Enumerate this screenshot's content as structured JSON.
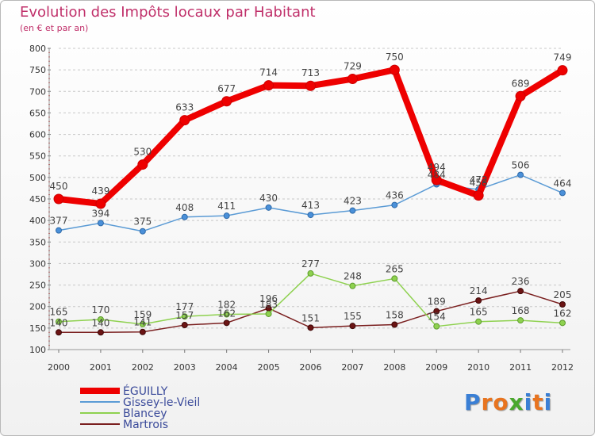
{
  "header": {
    "title": "Evolution des Impôts locaux par Habitant",
    "subtitle": "(en € et par an)"
  },
  "logo": {
    "text": "Proxiti",
    "letter_colors": [
      "#3a7fd5",
      "#e8741f",
      "#e8741f",
      "#4aa82e",
      "#3a7fd5",
      "#e8741f",
      "#3a7fd5"
    ]
  },
  "chart_data": {
    "type": "line",
    "x": [
      "2000",
      "2001",
      "2002",
      "2003",
      "2004",
      "2005",
      "2006",
      "2007",
      "2008",
      "2009",
      "2010",
      "2011",
      "2012"
    ],
    "ylim": [
      100,
      800
    ],
    "yticks": [
      100,
      150,
      200,
      250,
      300,
      350,
      400,
      450,
      500,
      550,
      600,
      650,
      700,
      750,
      800
    ],
    "grid": "dashed horizontal",
    "legend": "bottom-left",
    "series": [
      {
        "name": "ÉGUILLY",
        "color": "#ee0000",
        "values": [
          450,
          439,
          530,
          633,
          677,
          714,
          713,
          729,
          750,
          494,
          458,
          689,
          749
        ],
        "labels": [
          "450",
          "439",
          "530",
          "633",
          "677",
          "714",
          "713",
          "729",
          "750",
          "494",
          "458",
          "689",
          "749"
        ]
      },
      {
        "name": "Gissey-le-Vieil",
        "color": "#5b9bd5",
        "values": [
          377,
          394,
          375,
          408,
          411,
          430,
          413,
          423,
          436,
          484,
          472,
          506,
          464
        ],
        "labels": [
          "377",
          "394",
          "375",
          "408",
          "411",
          "430",
          "413",
          "423",
          "436",
          "484",
          "472",
          "506",
          "464"
        ]
      },
      {
        "name": "Blancey",
        "color": "#8ed14f",
        "values": [
          165,
          170,
          159,
          177,
          182,
          183,
          277,
          248,
          265,
          154,
          165,
          168,
          162
        ],
        "labels": [
          "165",
          "170",
          "159",
          "177",
          "182",
          "183",
          "277",
          "248",
          "265",
          "154",
          "165",
          "168",
          "162"
        ]
      },
      {
        "name": "Martrois",
        "color": "#7a1f1f",
        "values": [
          140,
          140,
          141,
          157,
          162,
          196,
          151,
          155,
          158,
          189,
          214,
          236,
          205
        ],
        "labels": [
          "140",
          "140",
          "141",
          "157",
          "162",
          "196",
          "151",
          "155",
          "158",
          "189",
          "214",
          "236",
          "205"
        ]
      }
    ]
  }
}
